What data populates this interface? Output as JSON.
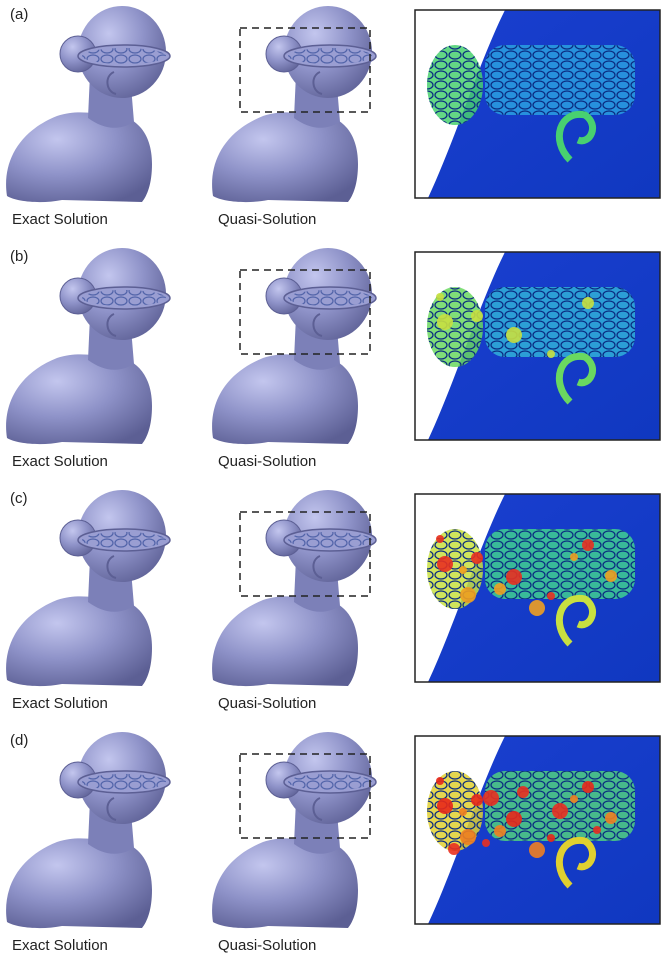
{
  "rows": [
    {
      "label": "(a)",
      "captions": [
        "Exact Solution",
        "Quasi-Solution"
      ]
    },
    {
      "label": "(b)",
      "captions": [
        "Exact Solution",
        "Quasi-Solution"
      ]
    },
    {
      "label": "(c)",
      "captions": [
        "Exact Solution",
        "Quasi-Solution"
      ]
    },
    {
      "label": "(d)",
      "captions": [
        "Exact Solution",
        "Quasi-Solution"
      ]
    }
  ]
}
